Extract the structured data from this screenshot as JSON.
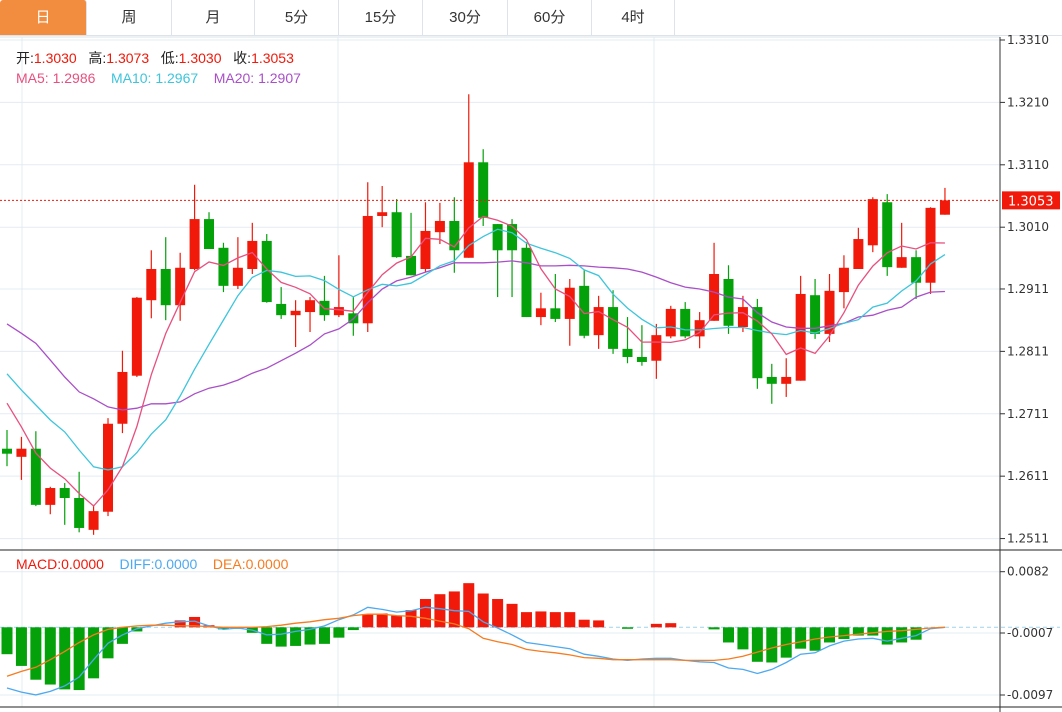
{
  "tabs": [
    {
      "label": "日",
      "active": true
    },
    {
      "label": "周"
    },
    {
      "label": "月"
    },
    {
      "label": "5分"
    },
    {
      "label": "15分"
    },
    {
      "label": "30分"
    },
    {
      "label": "60分"
    },
    {
      "label": "4时"
    }
  ],
  "ohlc": {
    "open_label": "开:",
    "open": "1.3030",
    "high_label": "高:",
    "high": "1.3073",
    "low_label": "低:",
    "low": "1.3030",
    "close_label": "收:",
    "close": "1.3053"
  },
  "ma": {
    "ma5_label": "MA5:",
    "ma5": "1.2986",
    "ma10_label": "MA10:",
    "ma10": "1.2967",
    "ma20_label": "MA20:",
    "ma20": "1.2907"
  },
  "macd_legend": {
    "macd_label": "MACD:",
    "macd": "0.0000",
    "diff_label": "DIFF:",
    "diff": "0.0000",
    "dea_label": "DEA:",
    "dea": "0.0000"
  },
  "colors": {
    "up": "#F0190A",
    "down": "#04A10A",
    "ma5": "#E8507F",
    "ma10": "#3DC5DC",
    "ma20": "#A94FC8",
    "diff": "#4DA9F0",
    "dea": "#F57C20",
    "active_tab": "#F28C3E"
  },
  "chart_data": [
    {
      "type": "candlestick",
      "title": "",
      "y_ticks": [
        "1.3310",
        "1.3210",
        "1.3110",
        "1.3010",
        "1.2911",
        "1.2811",
        "1.2711",
        "1.2611",
        "1.2511"
      ],
      "ylim": [
        1.2509,
        1.331
      ],
      "last_price": "1.3053",
      "candles_ohlc": [
        [
          1.2655,
          1.2685,
          1.2627,
          1.2647
        ],
        [
          1.2642,
          1.2674,
          1.2605,
          1.2655
        ],
        [
          1.2655,
          1.2683,
          1.2563,
          1.2565
        ],
        [
          1.2565,
          1.2594,
          1.255,
          1.2592
        ],
        [
          1.2592,
          1.26,
          1.2533,
          1.2576
        ],
        [
          1.2576,
          1.2618,
          1.2521,
          1.2528
        ],
        [
          1.2525,
          1.2565,
          1.2517,
          1.2555
        ],
        [
          1.2554,
          1.2704,
          1.2547,
          1.2695
        ],
        [
          1.2695,
          1.2812,
          1.268,
          1.2778
        ],
        [
          1.2772,
          1.2898,
          1.277,
          1.2897
        ],
        [
          1.2893,
          1.2973,
          1.2864,
          1.2943
        ],
        [
          1.2943,
          1.2994,
          1.2861,
          1.2885
        ],
        [
          1.2885,
          1.2969,
          1.286,
          1.2945
        ],
        [
          1.2943,
          1.3078,
          1.2941,
          1.3023
        ],
        [
          1.3023,
          1.3034,
          1.2975,
          1.2975
        ],
        [
          1.2977,
          1.2985,
          1.2906,
          1.2916
        ],
        [
          1.2916,
          1.2994,
          1.2911,
          1.2945
        ],
        [
          1.2943,
          1.3017,
          1.2935,
          1.2988
        ],
        [
          1.2988,
          1.2999,
          1.2889,
          1.289
        ],
        [
          1.2887,
          1.2914,
          1.2863,
          1.2869
        ],
        [
          1.2869,
          1.2893,
          1.2818,
          1.2876
        ],
        [
          1.2874,
          1.2898,
          1.2842,
          1.2893
        ],
        [
          1.2892,
          1.2932,
          1.286,
          1.2869
        ],
        [
          1.2869,
          1.2965,
          1.2866,
          1.2882
        ],
        [
          1.2872,
          1.2898,
          1.2836,
          1.2856
        ],
        [
          1.2856,
          1.3082,
          1.2842,
          1.3028
        ],
        [
          1.3028,
          1.3076,
          1.301,
          1.3034
        ],
        [
          1.3034,
          1.3055,
          1.2961,
          1.2962
        ],
        [
          1.2964,
          1.3033,
          1.2933,
          1.2933
        ],
        [
          1.2943,
          1.305,
          1.2938,
          1.3004
        ],
        [
          1.3002,
          1.3049,
          1.2983,
          1.302
        ],
        [
          1.302,
          1.3058,
          1.2937,
          1.2973
        ],
        [
          1.2961,
          1.3223,
          1.2961,
          1.3114
        ],
        [
          1.3114,
          1.3135,
          1.3012,
          1.3025
        ],
        [
          1.3015,
          1.3015,
          1.2898,
          1.2973
        ],
        [
          1.3015,
          1.3023,
          1.2898,
          1.2973
        ],
        [
          1.2977,
          1.2986,
          1.2866,
          1.2866
        ],
        [
          1.2866,
          1.2905,
          1.2853,
          1.288
        ],
        [
          1.288,
          1.2935,
          1.2858,
          1.2863
        ],
        [
          1.2863,
          1.2927,
          1.282,
          1.2913
        ],
        [
          1.2916,
          1.2941,
          1.2832,
          1.2836
        ],
        [
          1.2837,
          1.29,
          1.2815,
          1.2882
        ],
        [
          1.2882,
          1.2909,
          1.2807,
          1.2815
        ],
        [
          1.2815,
          1.2866,
          1.2792,
          1.2802
        ],
        [
          1.2802,
          1.2853,
          1.2788,
          1.2794
        ],
        [
          1.2796,
          1.2855,
          1.2767,
          1.2837
        ],
        [
          1.2835,
          1.2884,
          1.2832,
          1.2879
        ],
        [
          1.2879,
          1.289,
          1.2832,
          1.2835
        ],
        [
          1.2835,
          1.2874,
          1.2816,
          1.2861
        ],
        [
          1.286,
          1.2985,
          1.286,
          1.2935
        ],
        [
          1.2927,
          1.2949,
          1.2839,
          1.2852
        ],
        [
          1.285,
          1.29,
          1.2842,
          1.2882
        ],
        [
          1.2882,
          1.2895,
          1.2751,
          1.2768
        ],
        [
          1.277,
          1.2791,
          1.2727,
          1.2759
        ],
        [
          1.2759,
          1.28,
          1.2738,
          1.277
        ],
        [
          1.2764,
          1.2932,
          1.2764,
          1.2903
        ],
        [
          1.2901,
          1.2927,
          1.2831,
          1.2839
        ],
        [
          1.2839,
          1.2935,
          1.2826,
          1.2908
        ],
        [
          1.2906,
          1.2965,
          1.288,
          1.2945
        ],
        [
          1.2943,
          1.3009,
          1.2943,
          1.2991
        ],
        [
          1.2981,
          1.3058,
          1.297,
          1.3055
        ],
        [
          1.305,
          1.3063,
          1.2932,
          1.2946
        ],
        [
          1.2945,
          1.3017,
          1.2945,
          1.2962
        ],
        [
          1.2962,
          1.2973,
          1.2895,
          1.2921
        ],
        [
          1.2921,
          1.3042,
          1.2903,
          1.3041
        ],
        [
          1.303,
          1.3073,
          1.303,
          1.3053
        ]
      ],
      "ma5_leading": [
        1.2728,
        1.269,
        1.2648,
        1.2624
      ],
      "ma10_leading": [
        1.2775,
        1.2749,
        1.2725,
        1.2701,
        1.2682,
        1.2653,
        1.2626,
        1.2621,
        1.2626
      ],
      "ma20": [
        1.2855,
        1.284,
        1.2824,
        1.2797,
        1.277,
        1.2746,
        1.2735,
        1.2722,
        1.2717,
        1.272,
        1.2727,
        1.2727,
        1.273,
        1.2743,
        1.2752,
        1.2757,
        1.2765,
        1.2776,
        1.2784,
        1.2796,
        1.2808,
        1.2821,
        1.2839,
        1.2847,
        1.2863,
        1.2889,
        1.2911,
        1.2924,
        1.293,
        1.2938,
        1.2945,
        1.2953,
        1.2953,
        1.2953,
        1.2954,
        1.2956,
        1.2953,
        1.2948,
        1.2948,
        1.2949,
        1.2948,
        1.2946,
        1.2945,
        1.2943,
        1.2938,
        1.293,
        1.2921,
        1.2914,
        1.2911,
        1.2906,
        1.2898,
        1.2895,
        1.2873,
        1.2858,
        1.285,
        1.2848,
        1.2848,
        1.2852,
        1.2856,
        1.2866,
        1.2869,
        1.2877,
        1.2882,
        1.2898,
        1.2906,
        1.2907
      ]
    },
    {
      "type": "bar+line",
      "title": "MACD",
      "y_ticks": [
        "0.0082",
        "-0.0007",
        "-0.0097"
      ],
      "macd": [
        -0.0039,
        -0.0056,
        -0.0076,
        -0.0083,
        -0.009,
        -0.0091,
        -0.0074,
        -0.0045,
        -0.0024,
        -0.0006,
        0,
        0,
        0.001,
        0.0015,
        0.0003,
        -0.0003,
        -0.0002,
        -0.0008,
        -0.0024,
        -0.0028,
        -0.0027,
        -0.0025,
        -0.0024,
        -0.0015,
        -0.0004,
        0.0019,
        0.002,
        0.0017,
        0.0025,
        0.0041,
        0.0048,
        0.0052,
        0.0064,
        0.0049,
        0.0041,
        0.0034,
        0.0022,
        0.0023,
        0.0022,
        0.0022,
        0.0011,
        0.001,
        0,
        -0.0001,
        0,
        0.0005,
        0.0006,
        0,
        0,
        -0.0003,
        -0.0022,
        -0.0032,
        -0.005,
        -0.0051,
        -0.0044,
        -0.0031,
        -0.0034,
        -0.0022,
        -0.0017,
        -0.0012,
        -0.0012,
        -0.0025,
        -0.0022,
        -0.0018,
        0,
        0
      ],
      "diff": [
        -0.0088,
        -0.0094,
        -0.0098,
        -0.0093,
        -0.0085,
        -0.0072,
        -0.0047,
        -0.0023,
        -0.0011,
        -0.0002,
        0.0002,
        0.0006,
        0.0008,
        0.0009,
        0.0002,
        -0.0003,
        -0.0001,
        -0.0004,
        -0.0011,
        -0.001,
        -0.0006,
        -0.0003,
        0.0002,
        0.0011,
        0.0018,
        0.0029,
        0.0026,
        0.0022,
        0.0024,
        0.0029,
        0.0027,
        0.0024,
        0.0023,
        0.0008,
        -0.0001,
        -0.0011,
        -0.0022,
        -0.0025,
        -0.0028,
        -0.0031,
        -0.0039,
        -0.0042,
        -0.0046,
        -0.0048,
        -0.0046,
        -0.0045,
        -0.0045,
        -0.0048,
        -0.005,
        -0.0051,
        -0.0059,
        -0.0061,
        -0.0067,
        -0.0061,
        -0.0051,
        -0.0039,
        -0.0037,
        -0.0027,
        -0.002,
        -0.0017,
        -0.0016,
        -0.002,
        -0.0016,
        -0.0012,
        -0.0002,
        0
      ],
      "dea": [
        -0.0071,
        -0.0064,
        -0.0058,
        -0.0047,
        -0.0035,
        -0.0022,
        -0.0011,
        -0.0003,
        0,
        0.0002,
        0.0003,
        0.0003,
        0.0002,
        0.0002,
        0.0001,
        0,
        0,
        0,
        0.0001,
        0.0003,
        0.0006,
        0.0008,
        0.0011,
        0.0013,
        0.0017,
        0.0019,
        0.0019,
        0.0017,
        0.0016,
        0.0013,
        0.0009,
        0.0005,
        -0.0002,
        -0.0016,
        -0.0021,
        -0.0025,
        -0.0032,
        -0.0035,
        -0.0037,
        -0.004,
        -0.0044,
        -0.0045,
        -0.0047,
        -0.0047,
        -0.0047,
        -0.0047,
        -0.0047,
        -0.0048,
        -0.0048,
        -0.0048,
        -0.0046,
        -0.0042,
        -0.0036,
        -0.003,
        -0.0025,
        -0.0021,
        -0.0017,
        -0.0014,
        -0.0012,
        -0.001,
        -0.0008,
        -0.0006,
        -0.0005,
        -0.0003,
        -0.0001,
        0
      ]
    }
  ]
}
